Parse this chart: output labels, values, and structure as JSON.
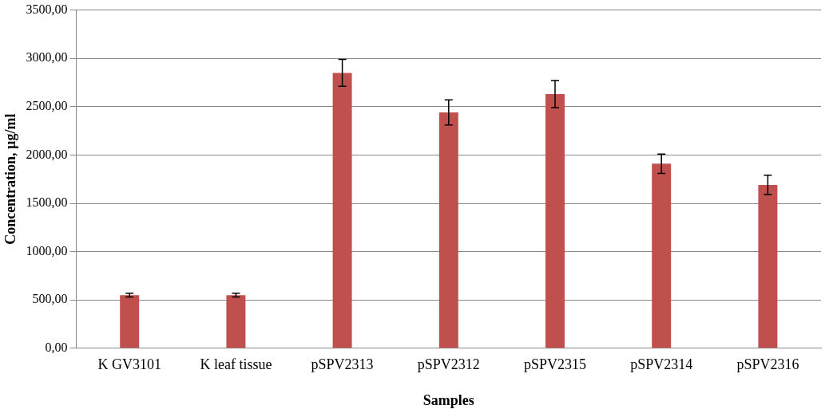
{
  "chart_data": {
    "type": "bar",
    "xlabel": "Samples",
    "ylabel": "Concentration, µg/ml",
    "categories": [
      "K GV3101",
      "K leaf tissue",
      "pSPV2313",
      "pSPV2312",
      "pSPV2315",
      "pSPV2314",
      "pSPV2316"
    ],
    "values": [
      550,
      550,
      2850,
      2440,
      2630,
      1910,
      1690
    ],
    "errors": [
      20,
      20,
      140,
      130,
      140,
      100,
      100
    ],
    "color": "#c0504d",
    "ylim": [
      0,
      3500
    ],
    "yticks": [
      {
        "value": 0,
        "label": "0,00"
      },
      {
        "value": 500,
        "label": "500,00"
      },
      {
        "value": 1000,
        "label": "1000,00"
      },
      {
        "value": 1500,
        "label": "1500,00"
      },
      {
        "value": 2000,
        "label": "2000,00"
      },
      {
        "value": 2500,
        "label": "2500,00"
      },
      {
        "value": 3000,
        "label": "3000,00"
      },
      {
        "value": 3500,
        "label": "3500,00"
      }
    ],
    "grid": "y",
    "legend": false
  }
}
